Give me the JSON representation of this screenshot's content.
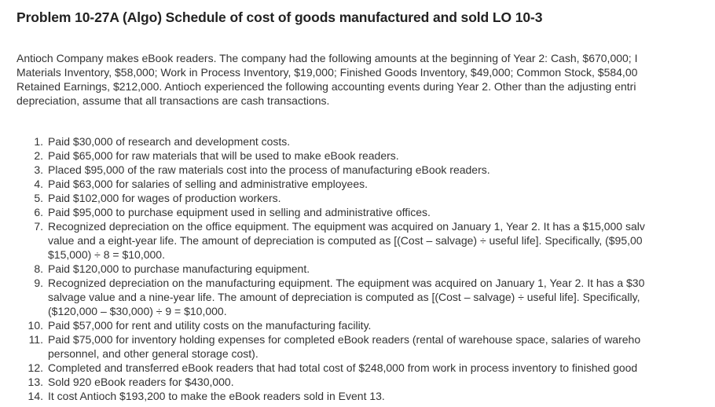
{
  "problem": {
    "title": "Problem 10-27A (Algo) Schedule of cost of goods manufactured and sold LO 10-3"
  },
  "intro": {
    "lines": [
      "Antioch Company makes eBook readers. The company had the following amounts at the beginning of Year 2: Cash, $670,000; I",
      "Materials Inventory, $58,000; Work in Process Inventory, $19,000; Finished Goods Inventory, $49,000; Common Stock, $584,00",
      "Retained Earnings, $212,000. Antioch experienced the following accounting events during Year 2. Other than the adjusting entri",
      "depreciation, assume that all transactions are cash transactions."
    ]
  },
  "events": [
    {
      "num": "1.",
      "lines": [
        "Paid $30,000 of research and development costs."
      ]
    },
    {
      "num": "2.",
      "lines": [
        "Paid $65,000 for raw materials that will be used to make eBook readers."
      ]
    },
    {
      "num": "3.",
      "lines": [
        "Placed $95,000 of the raw materials cost into the process of manufacturing eBook readers."
      ]
    },
    {
      "num": "4.",
      "lines": [
        "Paid $63,000 for salaries of selling and administrative employees."
      ]
    },
    {
      "num": "5.",
      "lines": [
        "Paid $102,000 for wages of production workers."
      ]
    },
    {
      "num": "6.",
      "lines": [
        "Paid $95,000 to purchase equipment used in selling and administrative offices."
      ]
    },
    {
      "num": "7.",
      "lines": [
        "Recognized depreciation on the office equipment. The equipment was acquired on January 1, Year 2. It has a $15,000 salv",
        "value and a eight-year life. The amount of depreciation is computed as [(Cost – salvage) ÷ useful life]. Specifically, ($95,00",
        "$15,000) ÷ 8 = $10,000."
      ]
    },
    {
      "num": "8.",
      "lines": [
        "Paid $120,000 to purchase manufacturing equipment."
      ]
    },
    {
      "num": "9.",
      "lines": [
        "Recognized depreciation on the manufacturing equipment. The equipment was acquired on January 1, Year 2. It has a $30",
        "salvage value and a nine-year life. The amount of depreciation is computed as [(Cost – salvage) ÷ useful life]. Specifically,",
        "($120,000 – $30,000) ÷ 9 = $10,000."
      ]
    },
    {
      "num": "10.",
      "lines": [
        "Paid $57,000 for rent and utility costs on the manufacturing facility."
      ]
    },
    {
      "num": "11.",
      "lines": [
        "Paid $75,000 for inventory holding expenses for completed eBook readers (rental of warehouse space, salaries of wareho",
        "personnel, and other general storage cost)."
      ]
    },
    {
      "num": "12.",
      "lines": [
        "Completed and transferred eBook readers that had total cost of $248,000 from work in process inventory to finished good"
      ]
    },
    {
      "num": "13.",
      "lines": [
        "Sold 920 eBook readers for $430,000."
      ]
    },
    {
      "num": "14.",
      "lines": [
        "It cost Antioch $193,200 to make the eBook readers sold in Event 13."
      ]
    }
  ]
}
